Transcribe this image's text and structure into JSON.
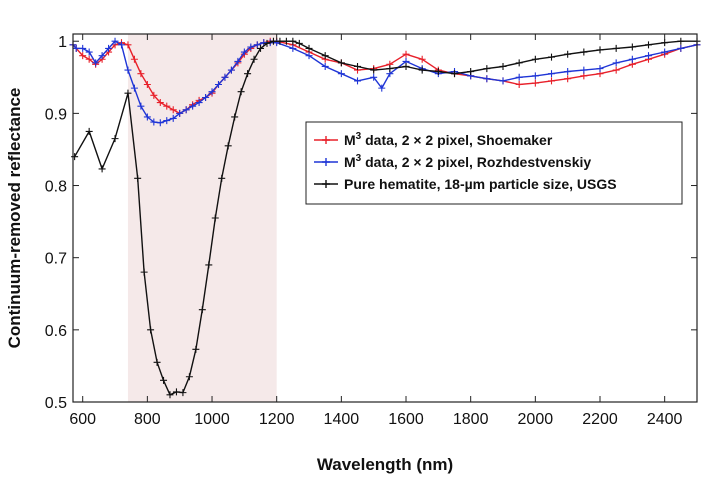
{
  "chart_data": {
    "type": "line",
    "xlabel": "Wavelength (nm)",
    "ylabel": "Continuum-removed reflectance",
    "xlim": [
      570,
      2500
    ],
    "ylim": [
      0.5,
      1.01
    ],
    "xticks": [
      600,
      800,
      1000,
      1200,
      1400,
      1600,
      1800,
      2000,
      2200,
      2400
    ],
    "yticks": [
      0.5,
      0.6,
      0.7,
      0.8,
      0.9,
      1
    ],
    "xtick_labels": [
      "600",
      "800",
      "1000",
      "1200",
      "1400",
      "1600",
      "1800",
      "2000",
      "2200",
      "2400"
    ],
    "ytick_labels": [
      "0.5",
      "0.6",
      "0.7",
      "0.8",
      "0.9",
      "1"
    ],
    "grid": false,
    "legend_position": "right-middle",
    "shaded_region": {
      "x_start": 740,
      "x_end": 1200,
      "color": "#f5e9e9"
    },
    "series": [
      {
        "name_main": "M",
        "name_sup": "3",
        "name_rest": " data, 2 × 2 pixel, Shoemaker",
        "color": "#e8202a",
        "marker": "plus",
        "x": [
          570,
          580,
          600,
          620,
          640,
          660,
          680,
          700,
          720,
          740,
          760,
          780,
          800,
          820,
          840,
          860,
          880,
          900,
          920,
          940,
          960,
          980,
          1000,
          1020,
          1040,
          1060,
          1080,
          1100,
          1120,
          1140,
          1160,
          1180,
          1200,
          1250,
          1300,
          1350,
          1400,
          1450,
          1500,
          1550,
          1600,
          1650,
          1700,
          1750,
          1800,
          1850,
          1900,
          1950,
          2000,
          2050,
          2100,
          2150,
          2200,
          2250,
          2300,
          2350,
          2400,
          2450,
          2500
        ],
        "y": [
          0.995,
          0.99,
          0.98,
          0.975,
          0.968,
          0.975,
          0.985,
          0.995,
          0.998,
          0.995,
          0.975,
          0.955,
          0.94,
          0.925,
          0.915,
          0.91,
          0.905,
          0.9,
          0.905,
          0.912,
          0.918,
          0.922,
          0.928,
          0.94,
          0.95,
          0.96,
          0.97,
          0.982,
          0.99,
          0.995,
          0.998,
          1.0,
          1.0,
          0.995,
          0.985,
          0.975,
          0.97,
          0.96,
          0.962,
          0.968,
          0.982,
          0.975,
          0.96,
          0.955,
          0.952,
          0.948,
          0.945,
          0.94,
          0.942,
          0.945,
          0.948,
          0.952,
          0.955,
          0.96,
          0.968,
          0.975,
          0.982,
          0.99,
          0.995
        ]
      },
      {
        "name_main": "M",
        "name_sup": "3",
        "name_rest": " data, 2 × 2 pixel, Rozhdestvenskiy",
        "color": "#1f35d6",
        "marker": "plus",
        "x": [
          570,
          580,
          600,
          620,
          640,
          660,
          680,
          700,
          720,
          740,
          760,
          780,
          800,
          820,
          840,
          860,
          880,
          900,
          920,
          940,
          960,
          980,
          1000,
          1020,
          1040,
          1060,
          1080,
          1100,
          1120,
          1140,
          1160,
          1180,
          1200,
          1250,
          1300,
          1350,
          1400,
          1450,
          1500,
          1525,
          1550,
          1600,
          1650,
          1700,
          1750,
          1800,
          1850,
          1900,
          1950,
          2000,
          2050,
          2100,
          2150,
          2200,
          2250,
          2300,
          2350,
          2400,
          2450,
          2500
        ],
        "y": [
          0.995,
          0.99,
          0.99,
          0.985,
          0.97,
          0.98,
          0.99,
          1.0,
          0.995,
          0.96,
          0.935,
          0.91,
          0.895,
          0.888,
          0.887,
          0.89,
          0.893,
          0.9,
          0.905,
          0.91,
          0.915,
          0.922,
          0.93,
          0.94,
          0.95,
          0.96,
          0.972,
          0.985,
          0.992,
          0.995,
          0.998,
          0.998,
          0.998,
          0.99,
          0.98,
          0.965,
          0.955,
          0.945,
          0.95,
          0.935,
          0.955,
          0.972,
          0.962,
          0.955,
          0.958,
          0.952,
          0.948,
          0.945,
          0.95,
          0.952,
          0.955,
          0.958,
          0.96,
          0.962,
          0.97,
          0.975,
          0.98,
          0.985,
          0.99,
          0.995
        ]
      },
      {
        "name_main": "Pure hematite, 18-µm particle size, USGS",
        "name_sup": "",
        "name_rest": "",
        "color": "#111111",
        "marker": "plus",
        "x": [
          575,
          620,
          660,
          700,
          740,
          770,
          790,
          810,
          830,
          850,
          870,
          890,
          910,
          930,
          950,
          970,
          990,
          1010,
          1030,
          1050,
          1070,
          1090,
          1110,
          1130,
          1150,
          1170,
          1190,
          1210,
          1230,
          1250,
          1270,
          1300,
          1350,
          1400,
          1450,
          1500,
          1550,
          1600,
          1650,
          1700,
          1750,
          1800,
          1850,
          1900,
          1950,
          2000,
          2050,
          2100,
          2150,
          2200,
          2250,
          2300,
          2350,
          2400,
          2450,
          2500
        ],
        "y": [
          0.84,
          0.875,
          0.823,
          0.865,
          0.928,
          0.81,
          0.68,
          0.6,
          0.555,
          0.53,
          0.51,
          0.514,
          0.513,
          0.535,
          0.573,
          0.628,
          0.69,
          0.755,
          0.81,
          0.855,
          0.895,
          0.93,
          0.955,
          0.975,
          0.99,
          0.997,
          1.0,
          1.0,
          1.0,
          1.0,
          0.997,
          0.99,
          0.98,
          0.97,
          0.965,
          0.96,
          0.962,
          0.965,
          0.96,
          0.958,
          0.955,
          0.958,
          0.962,
          0.965,
          0.97,
          0.975,
          0.978,
          0.982,
          0.985,
          0.988,
          0.99,
          0.992,
          0.995,
          0.998,
          1.0,
          1.0
        ]
      }
    ]
  }
}
